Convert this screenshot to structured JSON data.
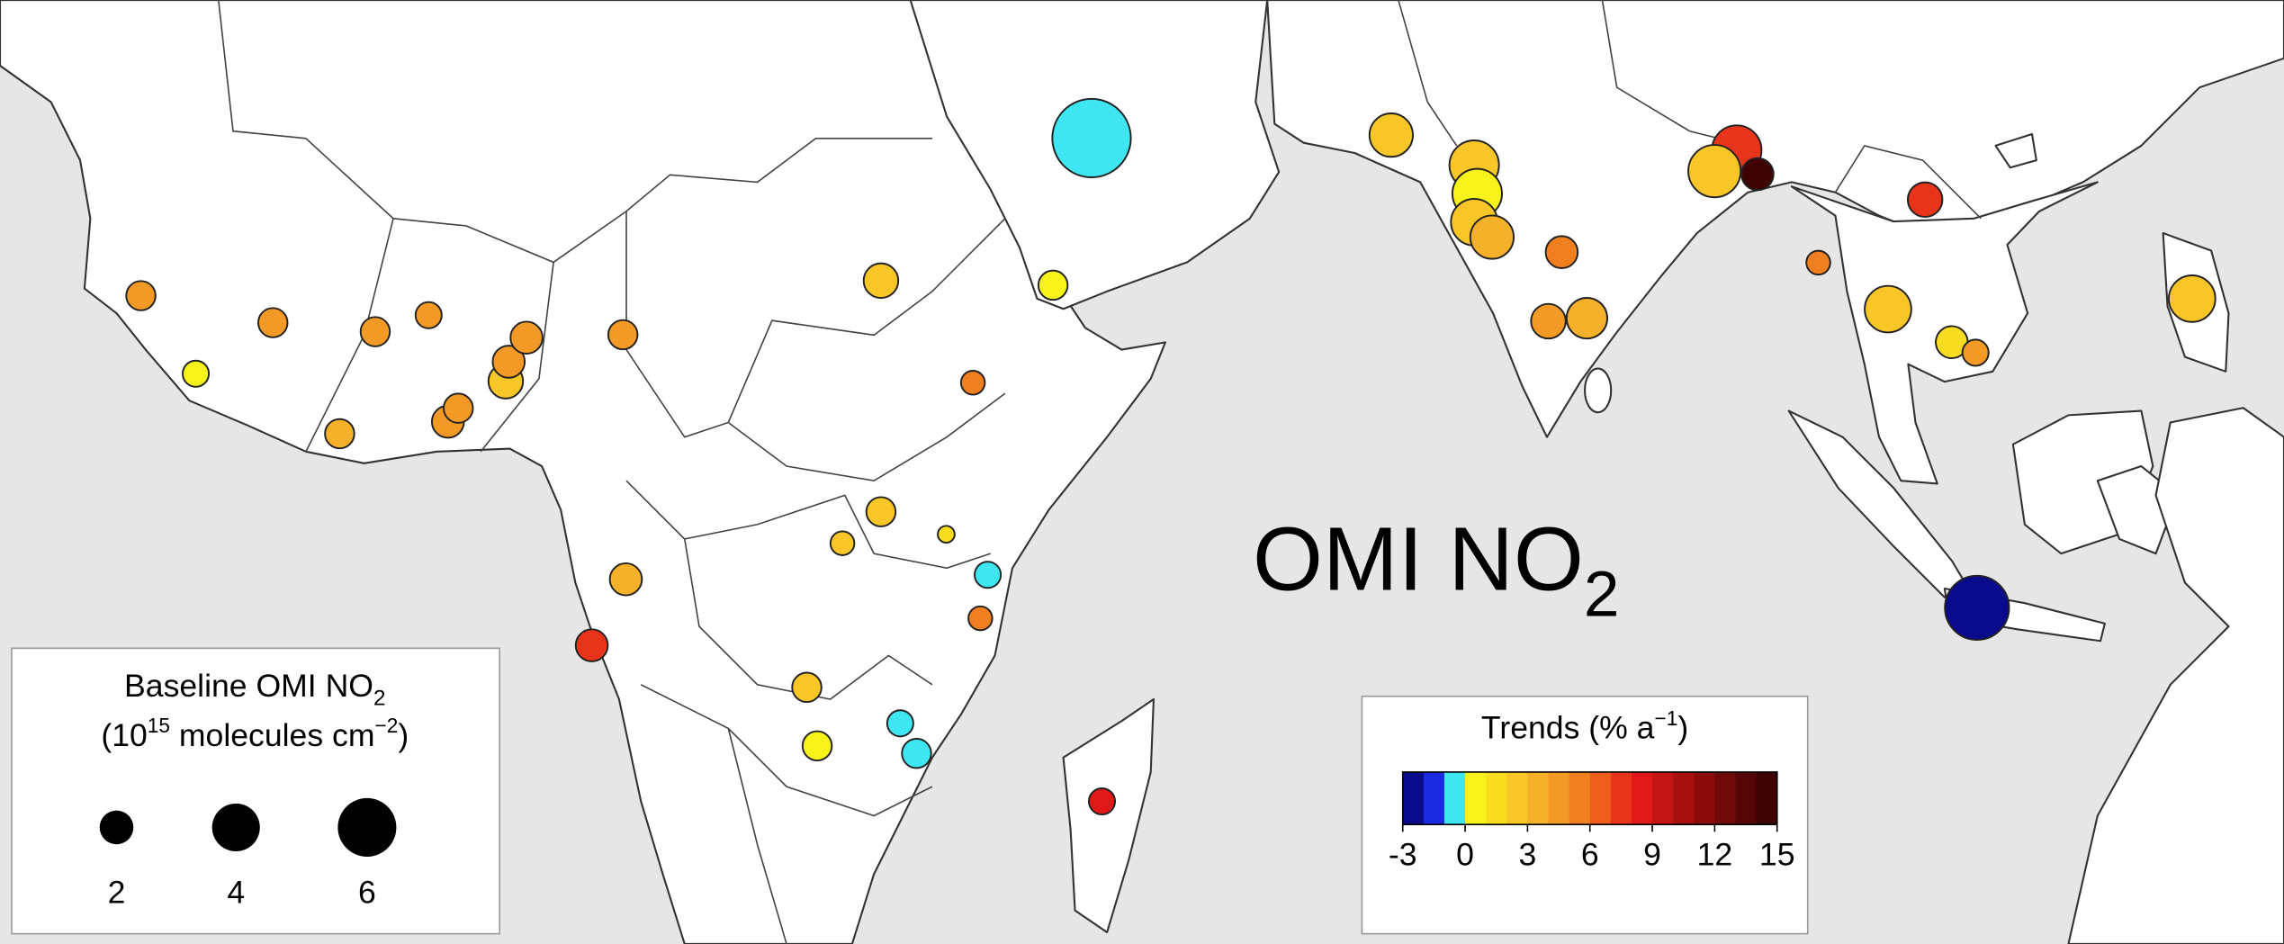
{
  "chart_data": {
    "type": "bubble-map",
    "title": {
      "text": "OMI NO",
      "subscript": "2"
    },
    "xlim": [
      -26.8,
      127.2
    ],
    "ylim": [
      -28.5,
      34.4
    ],
    "size_legend": {
      "line1": "Baseline OMI NO",
      "line1_sub": "2",
      "line2_open": "(10",
      "line2_sup": "15",
      "line2_mid": " molecules cm",
      "line2_sup2": "−2",
      "line2_close": ")",
      "values": [
        2,
        4,
        6
      ]
    },
    "color_legend": {
      "title": "Trends (% a",
      "title_sup": "−1",
      "title_close": ")",
      "clim": [
        -3,
        15
      ],
      "ticks": [
        -3,
        0,
        3,
        6,
        9,
        12,
        15
      ],
      "colors": [
        "#0a0a8c",
        "#1a2ae0",
        "#3ee6f2",
        "#f6f21a",
        "#f8dc1f",
        "#f8c626",
        "#f6b02a",
        "#f39a26",
        "#f07f20",
        "#ee5e1a",
        "#e8341a",
        "#e01818",
        "#c41414",
        "#a81010",
        "#8c0c0c",
        "#700a0a",
        "#560606",
        "#3e0404"
      ]
    },
    "points": [
      {
        "lon": -17.3,
        "lat": 14.7,
        "baseline": 1.5,
        "trend": 4
      },
      {
        "lon": -13.6,
        "lat": 9.5,
        "baseline": 1.2,
        "trend": 0.5
      },
      {
        "lon": -8.4,
        "lat": 12.9,
        "baseline": 1.5,
        "trend": 4
      },
      {
        "lon": -1.5,
        "lat": 12.3,
        "baseline": 1.5,
        "trend": 4
      },
      {
        "lon": 2.1,
        "lat": 13.4,
        "baseline": 1.2,
        "trend": 4.5
      },
      {
        "lon": -3.9,
        "lat": 5.5,
        "baseline": 1.5,
        "trend": 3.5
      },
      {
        "lon": 3.4,
        "lat": 6.3,
        "baseline": 1.8,
        "trend": 4.5
      },
      {
        "lon": 4.1,
        "lat": 7.2,
        "baseline": 1.5,
        "trend": 4.5
      },
      {
        "lon": 7.3,
        "lat": 9.0,
        "baseline": 2.1,
        "trend": 2
      },
      {
        "lon": 7.5,
        "lat": 10.3,
        "baseline": 1.8,
        "trend": 4.5
      },
      {
        "lon": 8.7,
        "lat": 11.9,
        "baseline": 1.8,
        "trend": 4
      },
      {
        "lon": 15.2,
        "lat": 12.1,
        "baseline": 1.5,
        "trend": 4
      },
      {
        "lon": 32.6,
        "lat": 15.7,
        "baseline": 2.1,
        "trend": 2.5
      },
      {
        "lon": 44.2,
        "lat": 15.4,
        "baseline": 1.5,
        "trend": 0.5
      },
      {
        "lon": 38.8,
        "lat": 8.9,
        "baseline": 1,
        "trend": 5
      },
      {
        "lon": 32.6,
        "lat": 0.3,
        "baseline": 1.5,
        "trend": 2.5
      },
      {
        "lon": 37.0,
        "lat": -1.2,
        "baseline": 0.5,
        "trend": 1
      },
      {
        "lon": 30.0,
        "lat": -1.8,
        "baseline": 1,
        "trend": 2.5
      },
      {
        "lon": 39.8,
        "lat": -3.9,
        "baseline": 1.2,
        "trend": -1
      },
      {
        "lon": 39.3,
        "lat": -6.8,
        "baseline": 1,
        "trend": 5
      },
      {
        "lon": 15.4,
        "lat": -4.2,
        "baseline": 1.8,
        "trend": 3.5
      },
      {
        "lon": 13.1,
        "lat": -8.6,
        "baseline": 1.8,
        "trend": 7
      },
      {
        "lon": 27.6,
        "lat": -11.4,
        "baseline": 1.5,
        "trend": 2.5
      },
      {
        "lon": 28.3,
        "lat": -15.3,
        "baseline": 1.5,
        "trend": 0.5
      },
      {
        "lon": 33.9,
        "lat": -13.8,
        "baseline": 1.2,
        "trend": -1
      },
      {
        "lon": 35.0,
        "lat": -15.8,
        "baseline": 1.5,
        "trend": -1
      },
      {
        "lon": 47.5,
        "lat": -19.0,
        "baseline": 1.2,
        "trend": 8
      },
      {
        "lon": 46.8,
        "lat": 25.2,
        "baseline": 10.8,
        "trend": -1
      },
      {
        "lon": 67.0,
        "lat": 25.4,
        "baseline": 3.3,
        "trend": 2.5
      },
      {
        "lon": 72.6,
        "lat": 23.4,
        "baseline": 4.3,
        "trend": 2.5
      },
      {
        "lon": 72.8,
        "lat": 21.5,
        "baseline": 4.3,
        "trend": 0.5
      },
      {
        "lon": 72.6,
        "lat": 19.6,
        "baseline": 3.8,
        "trend": 2
      },
      {
        "lon": 73.8,
        "lat": 18.6,
        "baseline": 3.3,
        "trend": 3
      },
      {
        "lon": 78.5,
        "lat": 17.6,
        "baseline": 1.8,
        "trend": 5
      },
      {
        "lon": 77.6,
        "lat": 13.0,
        "baseline": 2.1,
        "trend": 4
      },
      {
        "lon": 80.2,
        "lat": 13.2,
        "baseline": 2.9,
        "trend": 3
      },
      {
        "lon": 90.3,
        "lat": 24.4,
        "baseline": 4.3,
        "trend": 7
      },
      {
        "lon": 88.8,
        "lat": 23.0,
        "baseline": 4.8,
        "trend": 2.5
      },
      {
        "lon": 91.7,
        "lat": 22.8,
        "baseline": 1.8,
        "trend": 14
      },
      {
        "lon": 95.8,
        "lat": 16.9,
        "baseline": 1,
        "trend": 5
      },
      {
        "lon": 100.5,
        "lat": 13.8,
        "baseline": 3.8,
        "trend": 2.5
      },
      {
        "lon": 104.8,
        "lat": 11.6,
        "baseline": 1.8,
        "trend": 1.5
      },
      {
        "lon": 106.4,
        "lat": 10.9,
        "baseline": 1.2,
        "trend": 4
      },
      {
        "lon": 103.0,
        "lat": 21.1,
        "baseline": 2.1,
        "trend": 7
      },
      {
        "lon": 121.0,
        "lat": 14.5,
        "baseline": 3.8,
        "trend": 2.5
      },
      {
        "lon": 106.5,
        "lat": -6.1,
        "baseline": 7.2,
        "trend": -3
      }
    ]
  }
}
